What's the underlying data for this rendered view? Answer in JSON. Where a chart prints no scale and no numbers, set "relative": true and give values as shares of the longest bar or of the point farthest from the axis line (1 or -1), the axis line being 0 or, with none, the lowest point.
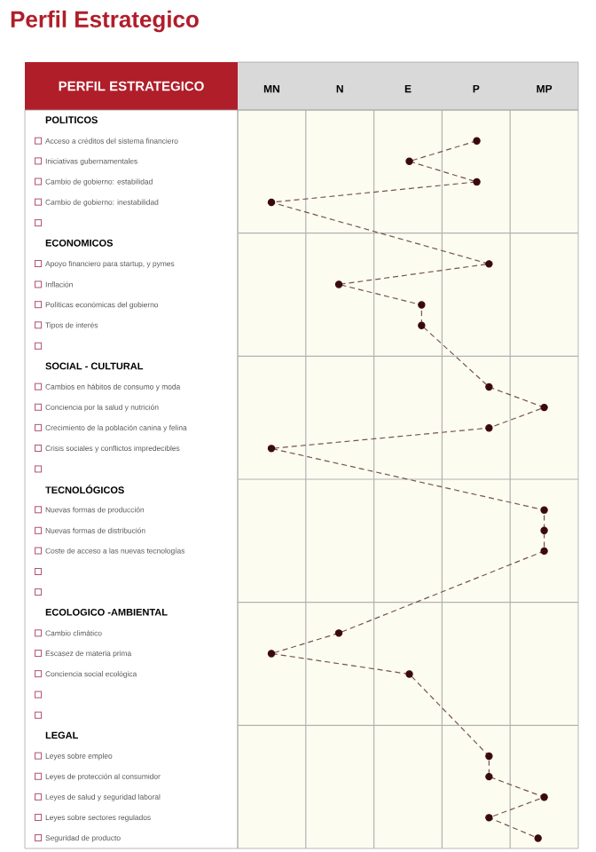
{
  "chart_data": {
    "type": "line",
    "orientation": "horizontal",
    "title": "Perfil Estrategico",
    "ylabel": "PERFIL ESTRATEGICO",
    "categories": [
      "POLITICOS",
      "Acceso a créditos del sistema financiero",
      "Iniciativas gubernamentales",
      "Cambio de gobierno: estabilidad",
      "Cambio de gobierno: inestabilidad",
      null,
      "ECONOMICOS",
      "Apoyo financiero para startup, y pymes",
      "Inflación",
      "Políticas económicas del gobierno",
      "Tipos de interés",
      null,
      "SOCIAL - CULTURAL",
      "Cambios en hábitos de consumo y moda",
      "Conciencia por la salud y nutrición",
      "Crecimiento de la población canina y felina",
      "Crisis sociales y conflictos impredecibles",
      null,
      "TECNOLÓGICOS",
      "Nuevas formas de producción",
      "Nuevas formas de distribución",
      "Coste de acceso a las nuevas tecnologías",
      null,
      null,
      "ECOLOGICO -AMBIENTAL",
      "Cambio climático",
      "Escasez de materia prima",
      "Conciencia social ecológica",
      null,
      null,
      "LEGAL",
      "Leyes sobre empleo",
      "Leyes de protección al consumidor",
      "Leyes de salud y seguridad laboral",
      "Leyes sobre sectores regulados",
      "Seguridad de producto"
    ],
    "values": [
      null,
      0.78,
      0.56,
      0.78,
      0.11,
      null,
      null,
      0.82,
      0.33,
      0.6,
      0.6,
      null,
      null,
      0.82,
      1,
      0.82,
      0.11,
      null,
      null,
      1,
      1,
      1,
      null,
      null,
      null,
      0.33,
      0.11,
      0.56,
      null,
      null,
      null,
      0.82,
      0.82,
      1,
      0.82,
      0.98
    ],
    "relative": true,
    "color": "#3a0a0a",
    "marker": "circle",
    "line_style": "dashed",
    "grid": "x",
    "annotations": [
      "MN",
      "N",
      "E",
      "P",
      "MP"
    ]
  }
}
